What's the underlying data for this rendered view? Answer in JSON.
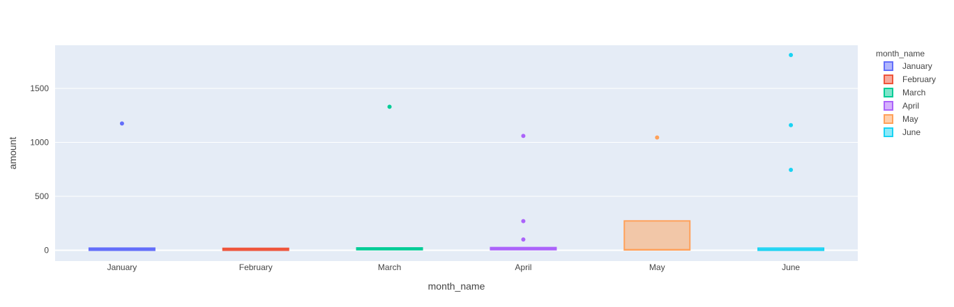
{
  "chart_data": {
    "type": "box",
    "title": "",
    "xlabel": "month_name",
    "ylabel": "amount",
    "ylim": [
      -100,
      1900
    ],
    "yticks": [
      0,
      500,
      1000,
      1500
    ],
    "ytick_labels": [
      "0",
      "500",
      "1000",
      "1500"
    ],
    "categories": [
      "January",
      "February",
      "March",
      "April",
      "May",
      "June"
    ],
    "grid": true,
    "legend": {
      "title": "month_name",
      "placement": "right"
    },
    "series": [
      {
        "name": "January",
        "color": "#636efa",
        "box": {
          "q1": 0,
          "median": 10,
          "q3": 20,
          "lower_fence": 0,
          "upper_fence": 20
        },
        "outliers": [
          1175
        ]
      },
      {
        "name": "February",
        "color": "#EF553B",
        "box": {
          "q1": 0,
          "median": 10,
          "q3": 18,
          "lower_fence": 0,
          "upper_fence": 18
        },
        "outliers": []
      },
      {
        "name": "March",
        "color": "#00cc96",
        "box": {
          "q1": 5,
          "median": 15,
          "q3": 22,
          "lower_fence": 0,
          "upper_fence": 25
        },
        "outliers": [
          1330
        ]
      },
      {
        "name": "April",
        "color": "#ab63fa",
        "box": {
          "q1": 5,
          "median": 15,
          "q3": 25,
          "lower_fence": 0,
          "upper_fence": 28
        },
        "outliers": [
          100,
          270,
          1060
        ]
      },
      {
        "name": "May",
        "color": "#FFA15A",
        "box": {
          "q1": 3,
          "median": 6,
          "q3": 272,
          "lower_fence": 0,
          "upper_fence": 272
        },
        "outliers": [
          1045
        ]
      },
      {
        "name": "June",
        "color": "#19d3f3",
        "box": {
          "q1": 0,
          "median": 5,
          "q3": 20,
          "lower_fence": 0,
          "upper_fence": 20
        },
        "outliers": [
          745,
          1160,
          1810
        ]
      }
    ]
  }
}
